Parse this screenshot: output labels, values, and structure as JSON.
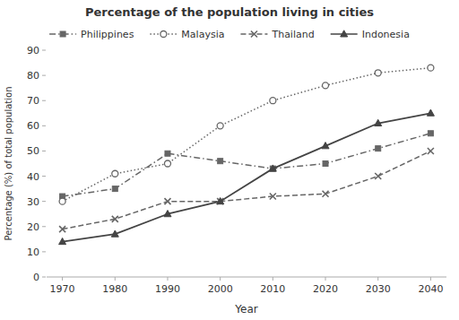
{
  "chart_data": {
    "type": "line",
    "title": "Percentage of the population living in cities",
    "x_label": "Year",
    "y_label": "Percentage (%) of total population",
    "x": [
      1970,
      1980,
      1990,
      2000,
      2010,
      2020,
      2030,
      2040
    ],
    "xlim": [
      1967,
      2043
    ],
    "xticks": [
      1970,
      1980,
      1990,
      2000,
      2010,
      2020,
      2030,
      2040
    ],
    "ylim": [
      0,
      90
    ],
    "yticks": [
      0,
      10,
      20,
      30,
      40,
      50,
      60,
      70,
      80,
      90
    ],
    "grid": false,
    "legend": "top",
    "series": [
      {
        "name": "Philippines",
        "color": "#666666",
        "line_style": "dashdot",
        "marker": "square",
        "values": [
          32,
          35,
          49,
          46,
          43,
          45,
          51,
          57
        ]
      },
      {
        "name": "Malaysia",
        "color": "#666666",
        "line_style": "dotted",
        "marker": "circle-open",
        "values": [
          30,
          41,
          45,
          60,
          70,
          76,
          81,
          83
        ]
      },
      {
        "name": "Thailand",
        "color": "#666666",
        "line_style": "dashed",
        "marker": "x",
        "values": [
          19,
          23,
          30,
          30,
          32,
          33,
          40,
          50
        ]
      },
      {
        "name": "Indonesia",
        "color": "#444444",
        "line_style": "solid",
        "marker": "triangle",
        "values": [
          14,
          17,
          25,
          30,
          43,
          52,
          61,
          65
        ]
      }
    ]
  }
}
